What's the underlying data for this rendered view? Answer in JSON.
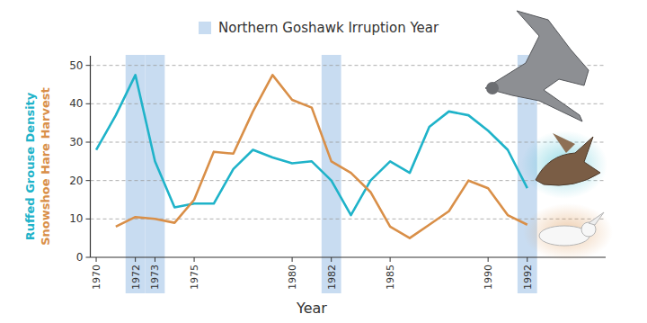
{
  "chart_data": {
    "type": "line",
    "x": [
      1970,
      1971,
      1972,
      1973,
      1974,
      1975,
      1976,
      1977,
      1978,
      1979,
      1980,
      1981,
      1982,
      1983,
      1984,
      1985,
      1986,
      1987,
      1988,
      1989,
      1990,
      1991,
      1992
    ],
    "series": [
      {
        "name": "Ruffed Grouse Density",
        "color": "#1fb3c9",
        "values": [
          28,
          37,
          47.5,
          25,
          13,
          14,
          14,
          23,
          28,
          26,
          24.5,
          25,
          20,
          11,
          20,
          25,
          22,
          34,
          38,
          37,
          33,
          28,
          18
        ]
      },
      {
        "name": "Snowshoe Hare Harvest",
        "color": "#d98f48",
        "values": [
          null,
          8,
          10.5,
          10,
          9,
          15,
          27.5,
          27,
          38,
          47.5,
          41,
          39,
          25,
          22,
          17,
          8,
          5,
          8.5,
          12,
          20,
          18,
          11,
          8.5
        ]
      }
    ],
    "irruption_label": "Northern Goshawk Irruption Year",
    "irruption_years": [
      1972,
      1973,
      1982,
      1992
    ],
    "irruption_color": "#c8dcf1",
    "xlabel": "Year",
    "xlim": [
      1969.7,
      1996
    ],
    "xticks": [
      1970,
      1972,
      1973,
      1975,
      1980,
      1982,
      1985,
      1990,
      1992
    ],
    "ylim": [
      0,
      52.5
    ],
    "yticks": [
      0,
      10,
      20,
      30,
      40,
      50
    ],
    "grid": true
  }
}
